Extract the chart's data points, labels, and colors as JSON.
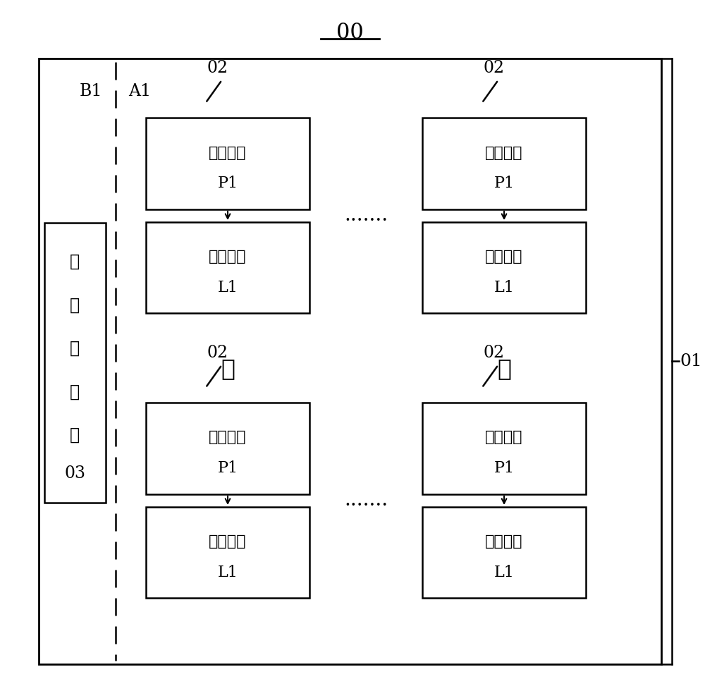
{
  "bg_color": "#ffffff",
  "label_01": "01",
  "label_00": "00",
  "label_B1": "B1",
  "label_A1": "A1",
  "label_02": "02",
  "label_03": "03",
  "test_box_label": "测试元件组\n03",
  "pixel_label": "像素电路",
  "pixel_sublabel": "P1",
  "light_label": "发光元件",
  "light_sublabel": "L1",
  "dots_h": ".......",
  "dots_v": "⋮"
}
